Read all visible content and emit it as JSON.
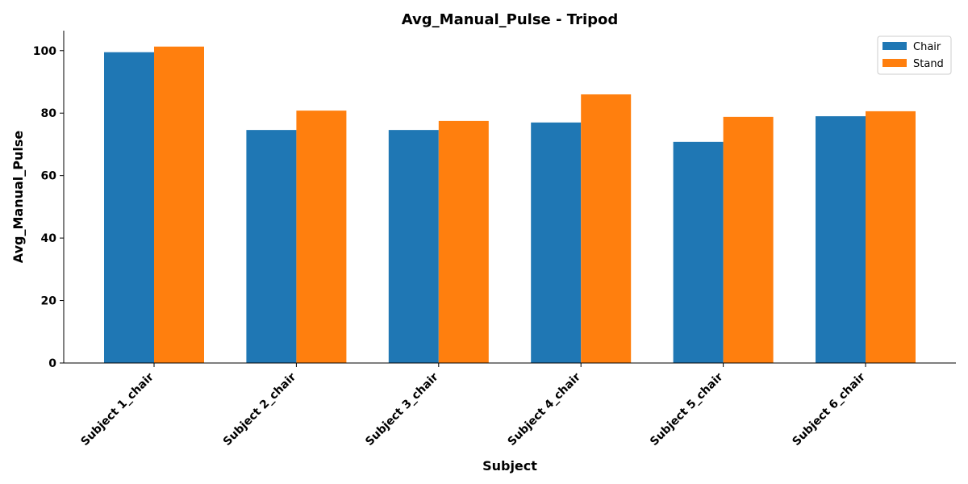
{
  "chart_data": {
    "type": "bar",
    "title": "Avg_Manual_Pulse - Tripod",
    "xlabel": "Subject",
    "ylabel": "Avg_Manual_Pulse",
    "categories": [
      "Subject 1_chair",
      "Subject 2_chair",
      "Subject 3_chair",
      "Subject 4_chair",
      "Subject 5_chair",
      "Subject 6_chair"
    ],
    "series": [
      {
        "name": "Chair",
        "color": "#1f77b4",
        "values": [
          99.5,
          74.6,
          74.6,
          77.0,
          70.8,
          79.0
        ]
      },
      {
        "name": "Stand",
        "color": "#ff7f0e",
        "values": [
          101.3,
          80.8,
          77.5,
          86.0,
          78.8,
          80.6
        ]
      }
    ],
    "ylim": [
      0,
      106.4
    ],
    "yticks": [
      0,
      20,
      40,
      60,
      80,
      100
    ],
    "grid": false,
    "legend_position": "top-right"
  }
}
